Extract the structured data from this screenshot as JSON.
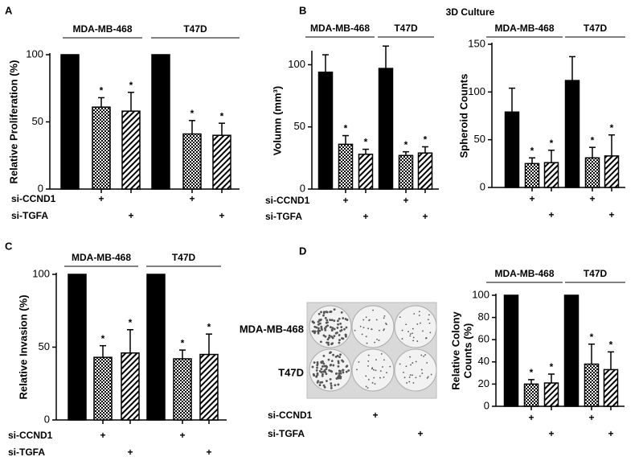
{
  "chart_data": [
    {
      "type": "bar",
      "panel": "A",
      "ylabel": "Relative Proliferation (%)",
      "ylim": [
        0,
        100
      ],
      "yticks": [
        0,
        50,
        100
      ],
      "color": "#000000",
      "groups": [
        {
          "name": "MDA-MB-468",
          "values": [
            100,
            61,
            58
          ],
          "errors": [
            null,
            7,
            14
          ],
          "significance": [
            null,
            "*",
            "*"
          ]
        },
        {
          "name": "T47D",
          "values": [
            100,
            41,
            40
          ],
          "errors": [
            null,
            10,
            9
          ],
          "significance": [
            null,
            "*",
            "*"
          ]
        }
      ],
      "conditions": [
        {
          "name": "si-CCND1",
          "marks": [
            null,
            "+",
            null
          ]
        },
        {
          "name": "si-TGFA",
          "marks": [
            null,
            null,
            "+"
          ]
        }
      ]
    },
    {
      "type": "bar",
      "panel": "B",
      "title": "3D Culture",
      "ylabel": "Volumn (mm³)",
      "ylim": [
        0,
        110
      ],
      "yticks": [
        0,
        50,
        100
      ],
      "color": "#000000",
      "groups": [
        {
          "name": "MDA-MB-468",
          "values": [
            94,
            36,
            28
          ],
          "errors": [
            14,
            7,
            4
          ],
          "significance": [
            null,
            "*",
            "*"
          ]
        },
        {
          "name": "T47D",
          "values": [
            97,
            27,
            29
          ],
          "errors": [
            18,
            3,
            5
          ],
          "significance": [
            null,
            "*",
            "*"
          ]
        }
      ],
      "conditions": [
        {
          "name": "si-CCND1",
          "marks": [
            null,
            "+",
            null
          ]
        },
        {
          "name": "si-TGFA",
          "marks": [
            null,
            null,
            "+"
          ]
        }
      ]
    },
    {
      "type": "bar",
      "ylabel": "Spheroid Counts",
      "ylim": [
        0,
        150
      ],
      "yticks": [
        0,
        50,
        100,
        150
      ],
      "color": "#000000",
      "groups": [
        {
          "name": "MDA-MB-468",
          "values": [
            79,
            25,
            26
          ],
          "errors": [
            25,
            6,
            13
          ],
          "significance": [
            null,
            "*",
            "*"
          ]
        },
        {
          "name": "T47D",
          "values": [
            112,
            31,
            33
          ],
          "errors": [
            25,
            11,
            22
          ],
          "significance": [
            null,
            "*",
            "*"
          ]
        }
      ],
      "conditions": [
        {
          "marks": [
            null,
            "+",
            null
          ]
        },
        {
          "marks": [
            null,
            null,
            "+"
          ]
        }
      ]
    },
    {
      "type": "bar",
      "panel": "C",
      "ylabel": "Relative Invasion (%)",
      "ylim": [
        0,
        100
      ],
      "yticks": [
        0,
        50,
        100
      ],
      "color": "#000000",
      "groups": [
        {
          "name": "MDA-MB-468",
          "values": [
            100,
            43,
            46
          ],
          "errors": [
            null,
            8,
            16
          ],
          "significance": [
            null,
            "*",
            "*"
          ]
        },
        {
          "name": "T47D",
          "values": [
            100,
            42,
            45
          ],
          "errors": [
            null,
            6,
            14
          ],
          "significance": [
            null,
            "*",
            "*"
          ]
        }
      ],
      "conditions": [
        {
          "name": "si-CCND1",
          "marks": [
            null,
            "+",
            null
          ]
        },
        {
          "name": "si-TGFA",
          "marks": [
            null,
            null,
            "+"
          ]
        }
      ]
    },
    {
      "type": "bar",
      "panel": "D",
      "ylabel": [
        "Relative Colony",
        "Counts (%)"
      ],
      "ylim": [
        0,
        100
      ],
      "yticks": [
        0,
        20,
        40,
        60,
        80,
        100
      ],
      "color": "#000000",
      "groups": [
        {
          "name": "MDA-MB-468",
          "values": [
            100,
            20,
            21
          ],
          "errors": [
            null,
            4,
            8
          ],
          "significance": [
            null,
            "*",
            "*"
          ]
        },
        {
          "name": "T47D",
          "values": [
            100,
            38,
            33
          ],
          "errors": [
            null,
            18,
            16
          ],
          "significance": [
            null,
            "*",
            "*"
          ]
        }
      ],
      "conditions": [
        {
          "marks": [
            null,
            "+",
            null
          ]
        },
        {
          "marks": [
            null,
            null,
            "+"
          ]
        }
      ]
    }
  ],
  "plate_image": {
    "row_labels": [
      "MDA-MB-468",
      "T47D"
    ],
    "conditions": [
      {
        "name": "si-CCND1",
        "marks": [
          null,
          "+",
          null
        ]
      },
      {
        "name": "si-TGFA",
        "marks": [
          null,
          null,
          "+"
        ]
      }
    ]
  }
}
